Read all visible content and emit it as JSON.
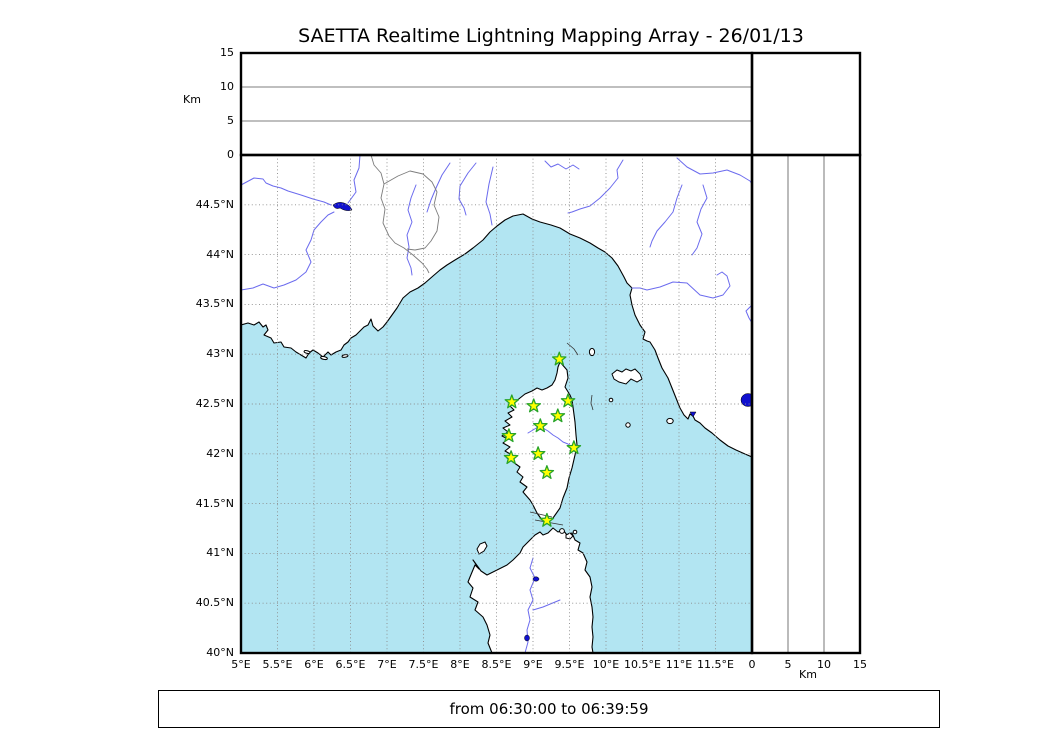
{
  "title": "SAETTA Realtime Lightning Mapping Array - 26/01/13",
  "footer_text": "from 06:30:00 to 06:39:59",
  "top_axis": {
    "label": "Km",
    "ticks": [
      {
        "v": 0,
        "label": "0"
      },
      {
        "v": 5,
        "label": "5"
      },
      {
        "v": 10,
        "label": "10"
      },
      {
        "v": 15,
        "label": "15"
      }
    ]
  },
  "right_axis": {
    "label": "Km",
    "ticks": [
      {
        "v": 0,
        "label": "0"
      },
      {
        "v": 5,
        "label": "5"
      },
      {
        "v": 10,
        "label": "10"
      },
      {
        "v": 15,
        "label": "15"
      }
    ]
  },
  "map": {
    "lat_ticks": [
      {
        "v": 44.5,
        "label": "44.5°N"
      },
      {
        "v": 44,
        "label": "44°N"
      },
      {
        "v": 43.5,
        "label": "43.5°N"
      },
      {
        "v": 43,
        "label": "43°N"
      },
      {
        "v": 42.5,
        "label": "42.5°N"
      },
      {
        "v": 42,
        "label": "42°N"
      },
      {
        "v": 41.5,
        "label": "41.5°N"
      },
      {
        "v": 41,
        "label": "41°N"
      },
      {
        "v": 40.5,
        "label": "40.5°N"
      },
      {
        "v": 40,
        "label": "40°N"
      }
    ],
    "lon_ticks": [
      {
        "v": 5,
        "label": "5°E"
      },
      {
        "v": 5.5,
        "label": "5.5°E"
      },
      {
        "v": 6,
        "label": "6°E"
      },
      {
        "v": 6.5,
        "label": "6.5°E"
      },
      {
        "v": 7,
        "label": "7°E"
      },
      {
        "v": 7.5,
        "label": "7.5°E"
      },
      {
        "v": 8,
        "label": "8°E"
      },
      {
        "v": 8.5,
        "label": "8.5°E"
      },
      {
        "v": 9,
        "label": "9°E"
      },
      {
        "v": 9.5,
        "label": "9.5°E"
      },
      {
        "v": 10,
        "label": "10°E"
      },
      {
        "v": 10.5,
        "label": "10.5°E"
      },
      {
        "v": 11,
        "label": "11°E"
      },
      {
        "v": 11.5,
        "label": "11.5°E"
      }
    ]
  },
  "stations": [
    {
      "lon": 9.36,
      "lat": 42.95
    },
    {
      "lon": 8.71,
      "lat": 42.52
    },
    {
      "lon": 9.01,
      "lat": 42.48
    },
    {
      "lon": 9.48,
      "lat": 42.53
    },
    {
      "lon": 9.34,
      "lat": 42.38
    },
    {
      "lon": 9.1,
      "lat": 42.28
    },
    {
      "lon": 8.67,
      "lat": 42.18
    },
    {
      "lon": 9.56,
      "lat": 42.06
    },
    {
      "lon": 8.7,
      "lat": 41.96
    },
    {
      "lon": 9.07,
      "lat": 42.0
    },
    {
      "lon": 9.19,
      "lat": 41.81
    },
    {
      "lon": 9.19,
      "lat": 41.33
    }
  ],
  "colors": {
    "sea": "#b2e5f2",
    "land": "#ffffff",
    "coast": "#000000",
    "river": "#6b6bee",
    "admin_border": "#7d7d7d",
    "lake": "#1010cf",
    "grid": "#8c8c8c",
    "star_fill": "#ffff00",
    "star_stroke": "#28a428",
    "frame": "#000000"
  },
  "chart_data": {
    "type": "map",
    "title": "SAETTA Realtime Lightning Mapping Array - 26/01/13",
    "date": "26/01/13",
    "time_window_from": "06:30:00",
    "time_window_to": "06:39:59",
    "panels": [
      {
        "name": "altitude-vs-longitude",
        "position": "top",
        "x_range_deg_east": [
          5,
          12
        ],
        "y_label": "Km",
        "y_ticks_km": [
          0,
          5,
          10,
          15
        ],
        "gridlines_km": [
          5,
          10
        ],
        "data_points": []
      },
      {
        "name": "plan-view-map",
        "position": "center",
        "lon_range_deg_east": [
          5,
          12
        ],
        "lat_range_deg_north": [
          40,
          45
        ],
        "graticule_step_deg": 0.5,
        "graticule_style": "dashed",
        "region": "Corsica, Ligurian Sea, Provence, Tuscany, northern Sardinia",
        "lightning_points": []
      },
      {
        "name": "altitude-vs-latitude",
        "position": "right",
        "x_label": "Km",
        "x_ticks_km": [
          0,
          5,
          10,
          15
        ],
        "gridlines_km": [
          5,
          10
        ],
        "data_points": []
      }
    ],
    "station_markers": {
      "symbol": "star",
      "fill": "#ffff00",
      "stroke": "#28a428",
      "locations_lon_lat": [
        [
          9.36,
          42.95
        ],
        [
          8.71,
          42.52
        ],
        [
          9.01,
          42.48
        ],
        [
          9.48,
          42.53
        ],
        [
          9.34,
          42.38
        ],
        [
          9.1,
          42.28
        ],
        [
          8.67,
          42.18
        ],
        [
          9.56,
          42.06
        ],
        [
          8.7,
          41.96
        ],
        [
          9.07,
          42.0
        ],
        [
          9.19,
          41.81
        ],
        [
          9.19,
          41.33
        ]
      ]
    }
  }
}
